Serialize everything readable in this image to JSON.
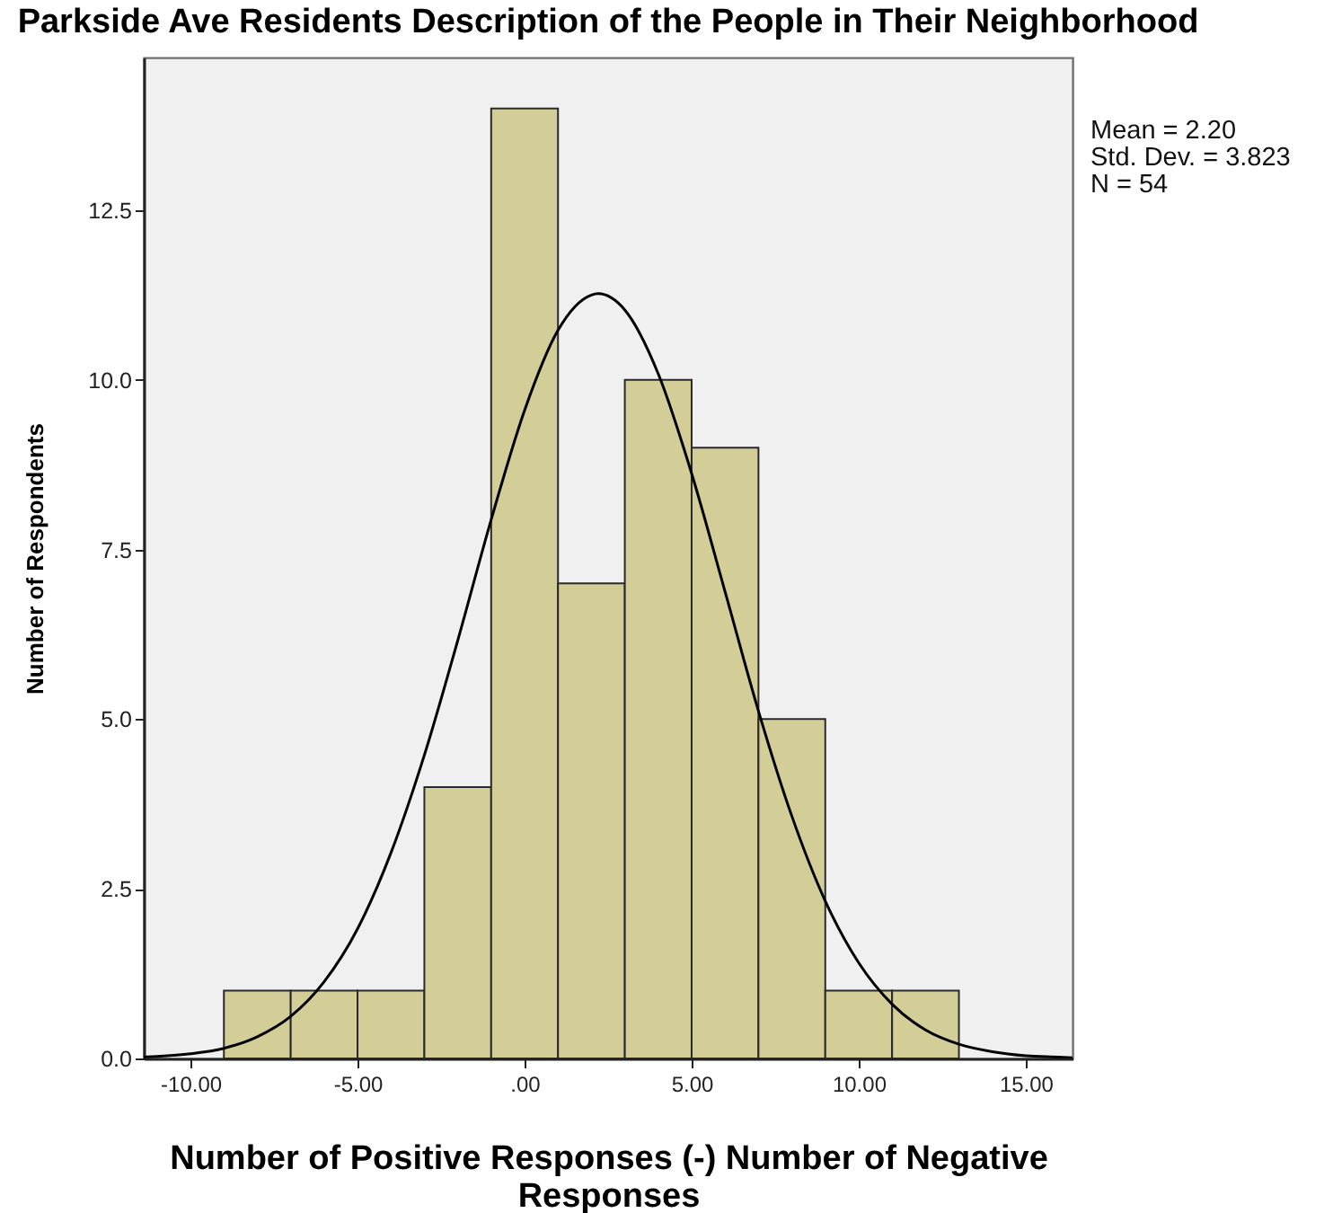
{
  "chart_data": {
    "type": "histogram",
    "title": "Parkside Ave Residents Description of the People in Their Neighborhood",
    "xlabel": "Number of Positive Responses (-) Number of Negative Responses",
    "ylabel": "Number of Respondents",
    "annotations": [
      "Mean = 2.20",
      "Std. Dev. = 3.823",
      "N = 54"
    ],
    "series": [
      {
        "color": "#d3ce97",
        "bins": [
          -9,
          -7,
          -5,
          -3,
          -1,
          1,
          3,
          5,
          7,
          9,
          11,
          13
        ],
        "values": [
          1,
          1,
          1,
          4,
          14,
          7,
          10,
          9,
          5,
          1,
          1
        ]
      },
      {
        "type": "line",
        "color": "#000000",
        "x": [
          -11.4,
          -11,
          -10,
          -9,
          -8,
          -7,
          -6,
          -5,
          -4,
          -3,
          -2,
          -1,
          0,
          1,
          2,
          2.2,
          3,
          4,
          5,
          6,
          7,
          8,
          9,
          10,
          11,
          12,
          13,
          14,
          15,
          16,
          16.4
        ],
        "values": [
          0.02,
          0.03,
          0.07,
          0.15,
          0.32,
          0.62,
          1.13,
          1.91,
          3.03,
          4.47,
          6.16,
          7.94,
          9.55,
          10.73,
          11.25,
          11.27,
          11.03,
          10.09,
          8.62,
          6.88,
          5.12,
          3.57,
          2.32,
          1.41,
          0.8,
          0.42,
          0.21,
          0.1,
          0.04,
          0.02,
          0.01
        ]
      }
    ],
    "xlim": [
      -11.4,
      16.4
    ],
    "xticks": [
      {
        "value": -10,
        "label": "-10.00"
      },
      {
        "value": -5,
        "label": "-5.00"
      },
      {
        "value": 0,
        "label": ".00"
      },
      {
        "value": 5,
        "label": "5.00"
      },
      {
        "value": 10,
        "label": "10.00"
      },
      {
        "value": 15,
        "label": "15.00"
      }
    ],
    "ylim": [
      0,
      14.75
    ],
    "yticks": [
      {
        "value": 0,
        "label": "0.0"
      },
      2.5,
      {
        "value": 5,
        "label": "5.0"
      },
      7.5,
      {
        "value": 10,
        "label": "10.0"
      },
      12.5
    ],
    "grid": false
  }
}
